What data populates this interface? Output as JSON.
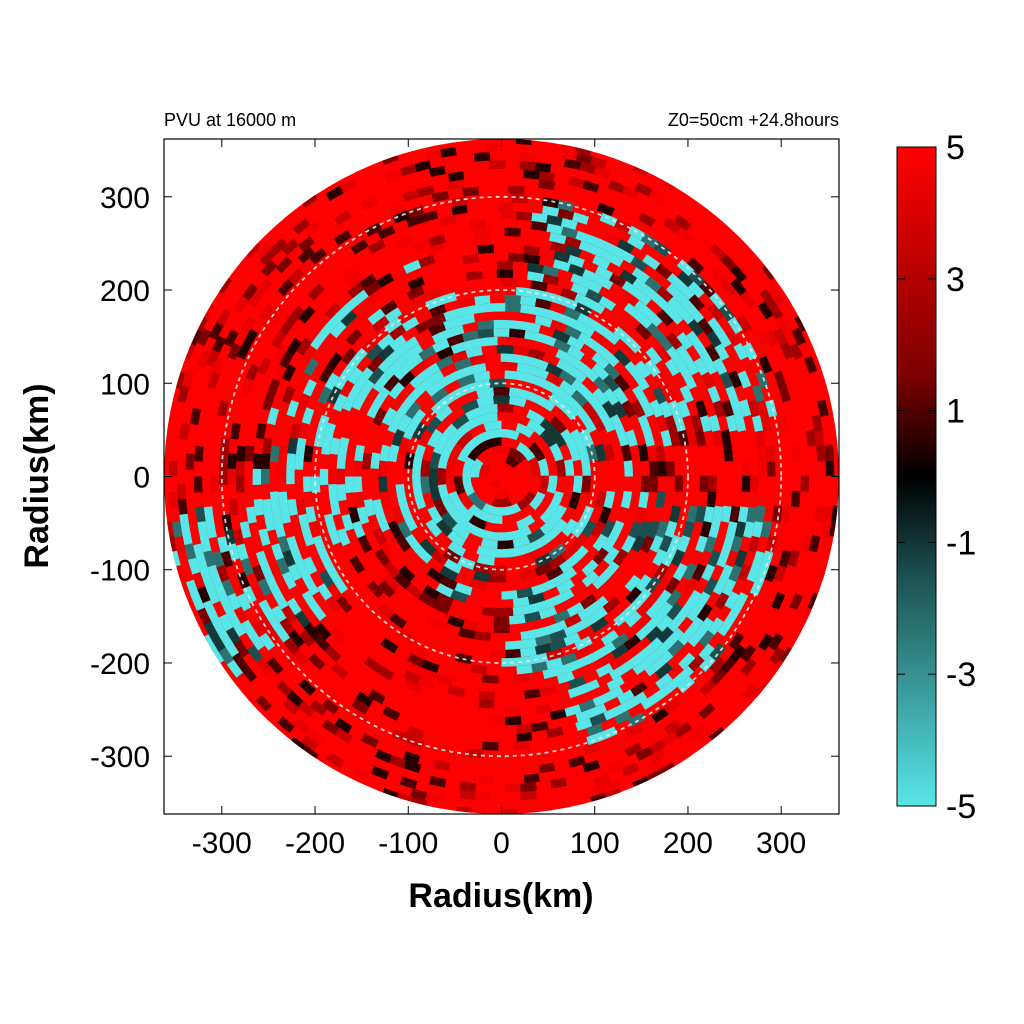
{
  "chart_data": {
    "type": "heatmap",
    "title_left": "PVU at 16000 m",
    "title_right": "Z0=50cm  +24.8hours",
    "xlabel": "Radius(km)",
    "ylabel": "Radius(km)",
    "xlim": [
      -362,
      362
    ],
    "ylim": [
      -362,
      362
    ],
    "x_ticks": [
      -300,
      -200,
      -100,
      0,
      100,
      200,
      300
    ],
    "y_ticks": [
      300,
      200,
      100,
      0,
      -100,
      -200,
      -300
    ],
    "x_tick_labels": [
      "-300",
      "-200",
      "-100",
      "0",
      "100",
      "200",
      "300"
    ],
    "y_tick_labels": [
      "300",
      "200",
      "100",
      "0",
      "-100",
      "-200",
      "-300"
    ],
    "domain_radius_km": 362,
    "range_rings_km": [
      100,
      200,
      300
    ],
    "colorbar": {
      "min": -5,
      "max": 5,
      "ticks": [
        5,
        3,
        1,
        -1,
        -3,
        -5
      ],
      "tick_labels": [
        "5",
        "3",
        "1",
        "-1",
        "-3",
        "-5"
      ],
      "colors": {
        "low": "#58e6e8",
        "mid": "#000000",
        "high": "#ff0000"
      }
    },
    "negative_regions": [
      {
        "ring_km": [
          20,
          140
        ],
        "az_deg": [
          0,
          360
        ],
        "coverage": 0.45
      },
      {
        "ring_km": [
          40,
          200
        ],
        "az_deg": [
          20,
          150
        ],
        "coverage": 0.6
      },
      {
        "ring_km": [
          120,
          300
        ],
        "az_deg": [
          10,
          80
        ],
        "coverage": 0.5
      },
      {
        "ring_km": [
          150,
          300
        ],
        "az_deg": [
          -75,
          -10
        ],
        "coverage": 0.55
      },
      {
        "ring_km": [
          100,
          220
        ],
        "az_deg": [
          -90,
          -30
        ],
        "coverage": 0.5
      },
      {
        "ring_km": [
          200,
          362
        ],
        "az_deg": [
          185,
          215
        ],
        "coverage": 0.5
      },
      {
        "ring_km": [
          120,
          260
        ],
        "az_deg": [
          160,
          200
        ],
        "coverage": 0.35
      },
      {
        "ring_km": [
          150,
          240
        ],
        "az_deg": [
          110,
          160
        ],
        "coverage": 0.25
      }
    ]
  }
}
